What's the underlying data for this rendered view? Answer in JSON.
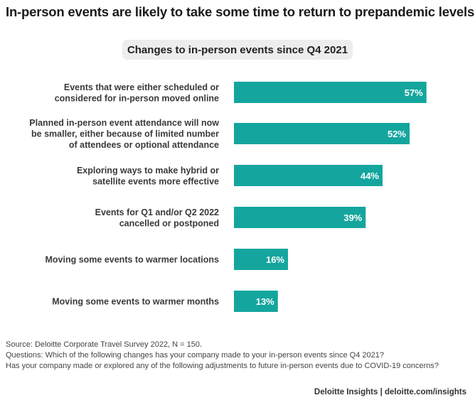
{
  "header": {
    "title": "In-person events are likely to take some time to return to prepandemic levels",
    "subtitle": "Changes to in-person events since Q4 2021"
  },
  "chart_data": {
    "type": "bar",
    "orientation": "horizontal",
    "categories": [
      [
        "Events that were either scheduled or",
        "considered for in-person moved online"
      ],
      [
        "Planned in-person event attendance will now",
        "be smaller, either because of limited number",
        "of attendees or optional attendance"
      ],
      [
        "Exploring ways to make hybrid or",
        "satellite events more effective"
      ],
      [
        "Events for Q1 and/or Q2 2022",
        "cancelled or postponed"
      ],
      [
        "Moving some events to warmer locations"
      ],
      [
        "Moving some events to warmer months"
      ]
    ],
    "values": [
      57,
      52,
      44,
      39,
      16,
      13
    ],
    "value_labels": [
      "57%",
      "52%",
      "44%",
      "39%",
      "16%",
      "13%"
    ],
    "unit": "%",
    "xlim": [
      0,
      100
    ],
    "grid": false,
    "bar_color": "#14a69e"
  },
  "footer": {
    "source": "Source: Deloitte Corporate Travel Survey 2022, N = 150.",
    "question1": "Questions: Which of the following changes has your company made to your in-person events since Q4 2021?",
    "question2": "Has your company made or explored any of the following adjustments to future in-person events due to COVID-19 concerns?",
    "credit": "Deloitte Insights | deloitte.com/insights"
  }
}
